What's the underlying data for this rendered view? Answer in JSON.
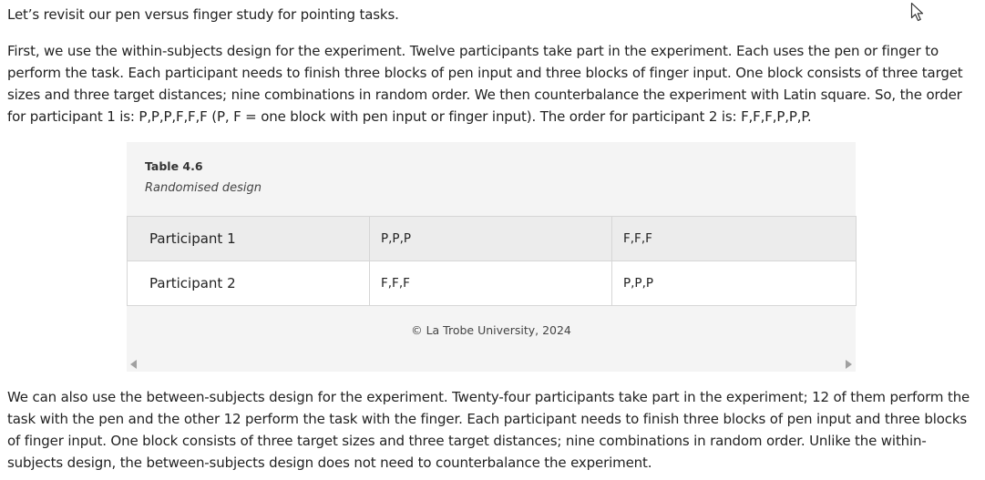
{
  "paragraphs": {
    "intro": "Let’s revisit our pen versus finger study for pointing tasks.",
    "within": "First, we use the within-subjects design for the experiment. Twelve participants take part in the experiment. Each uses the pen or finger to perform the task. Each participant needs to finish three blocks of pen input and three blocks of finger input. One block consists of three target sizes and three target distances; nine combinations in random order. We then counterbalance the experiment with Latin square. So, the order for participant 1 is: P,P,P,F,F,F (P, F = one block with pen input or finger input). The order for participant 2 is: F,F,F,P,P,P.",
    "between": "We can also use the between-subjects design for the experiment. Twenty-four participants take part in the experiment; 12 of them perform the task with the pen and the other 12 perform the task with the finger. Each participant needs to finish three blocks of pen input and three blocks of finger input. One block consists of three target sizes and three target distances; nine combinations in random order. Unlike the within-subjects design, the between-subjects design does not need to counterbalance the experiment."
  },
  "table": {
    "label": "Table 4.6",
    "subtitle": "Randomised design",
    "rows": [
      [
        "Participant 1",
        "P,P,P",
        "F,F,F"
      ],
      [
        "Participant 2",
        "F,F,F",
        "P,P,P"
      ]
    ],
    "credit": "© La Trobe University, 2024"
  },
  "icons": {
    "scroll_left": "caret-left-icon",
    "scroll_right": "caret-right-icon",
    "cursor": "mouse-pointer-icon"
  }
}
